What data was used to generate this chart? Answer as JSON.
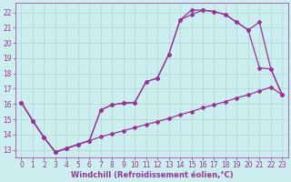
{
  "background_color": "#cceeee",
  "grid_color": "#aacccc",
  "line_color": "#993399",
  "marker": "D",
  "markersize": 2.0,
  "linewidth": 0.9,
  "xlabel": "Windchill (Refroidissement éolien,°C)",
  "xlabel_fontsize": 6.0,
  "tick_fontsize": 5.5,
  "xlim": [
    -0.5,
    23.5
  ],
  "ylim": [
    12.5,
    22.6
  ],
  "yticks": [
    13,
    14,
    15,
    16,
    17,
    18,
    19,
    20,
    21,
    22
  ],
  "xticks": [
    0,
    1,
    2,
    3,
    4,
    5,
    6,
    7,
    8,
    9,
    10,
    11,
    12,
    13,
    14,
    15,
    16,
    17,
    18,
    19,
    20,
    21,
    22,
    23
  ],
  "curve1_x": [
    0,
    1,
    2,
    3,
    4,
    5,
    6,
    7,
    8,
    9,
    10,
    11,
    12,
    13,
    14,
    15,
    16,
    17,
    18,
    19,
    20,
    21,
    22,
    23
  ],
  "curve1_y": [
    16.1,
    14.9,
    13.8,
    12.85,
    13.1,
    13.35,
    13.6,
    13.85,
    14.05,
    14.25,
    14.45,
    14.65,
    14.85,
    15.05,
    15.3,
    15.5,
    15.75,
    15.95,
    16.15,
    16.4,
    16.6,
    16.85,
    17.1,
    16.6
  ],
  "curve2_x": [
    0,
    1,
    2,
    3,
    4,
    5,
    6,
    7,
    8,
    9,
    10,
    11,
    12,
    13,
    14,
    15,
    16,
    17,
    18,
    19,
    20,
    21,
    22,
    23
  ],
  "curve2_y": [
    16.1,
    14.9,
    13.8,
    12.85,
    13.1,
    13.35,
    13.6,
    15.6,
    15.95,
    16.05,
    16.1,
    17.45,
    17.7,
    19.25,
    21.5,
    21.85,
    22.15,
    22.05,
    21.85,
    21.35,
    20.85,
    18.35,
    18.3,
    16.6
  ],
  "curve3_x": [
    0,
    1,
    2,
    3,
    4,
    5,
    6,
    7,
    8,
    9,
    10,
    11,
    12,
    13,
    14,
    15,
    16,
    17,
    18,
    19,
    20,
    21,
    22,
    23
  ],
  "curve3_y": [
    16.1,
    14.9,
    13.8,
    12.85,
    13.1,
    13.35,
    13.6,
    15.6,
    15.95,
    16.05,
    16.1,
    17.45,
    17.7,
    19.25,
    21.5,
    22.15,
    22.15,
    22.05,
    21.85,
    21.35,
    20.85,
    21.35,
    18.3,
    16.6
  ]
}
